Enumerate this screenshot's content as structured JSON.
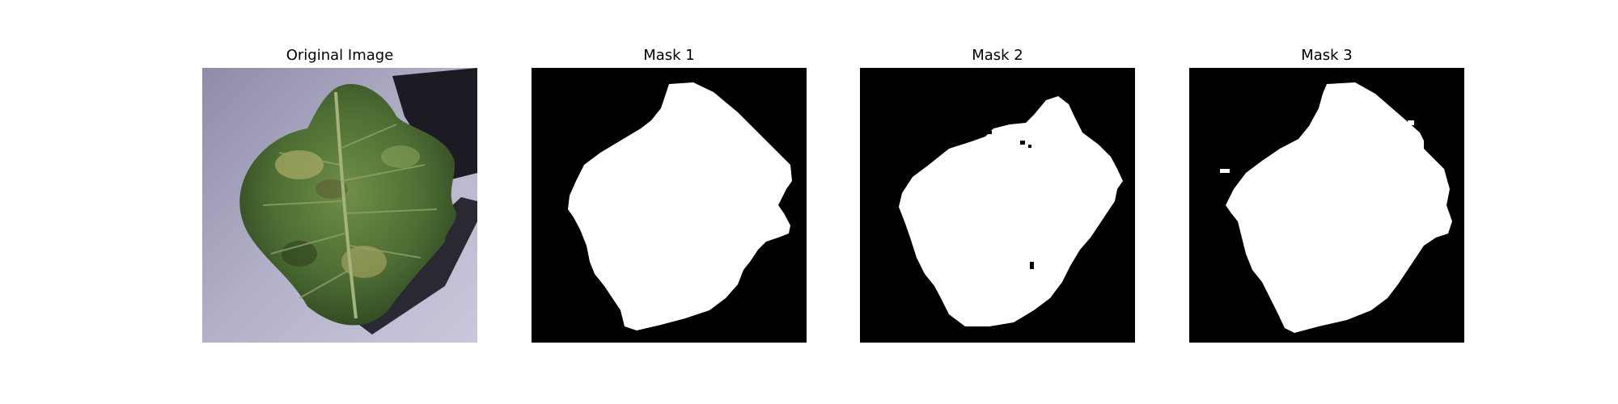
{
  "figure": {
    "panels": [
      {
        "title": "Original Image"
      },
      {
        "title": "Mask 1"
      },
      {
        "title": "Mask 2"
      },
      {
        "title": "Mask 3"
      }
    ]
  },
  "colors": {
    "background": "#ffffff",
    "mask_background": "#000000",
    "mask_foreground": "#ffffff",
    "leaf_dark": "#2f4a22",
    "leaf_mid": "#5b7f3f",
    "leaf_light": "#8fa85c",
    "surface": "#a9a7c3"
  }
}
